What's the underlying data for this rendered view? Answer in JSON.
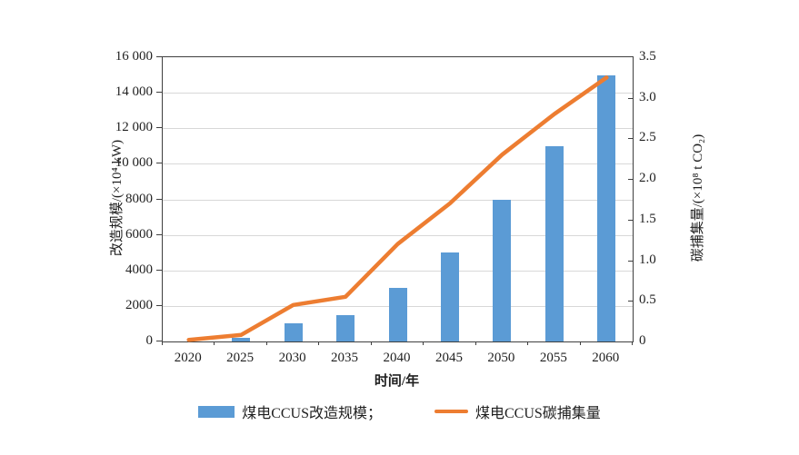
{
  "chart_data": {
    "type": "bar",
    "subtype": "combo-bar-line",
    "categories": [
      "2020",
      "2025",
      "2030",
      "2035",
      "2040",
      "2045",
      "2050",
      "2055",
      "2060"
    ],
    "series": [
      {
        "name": "煤电CCUS改造规模",
        "type": "bar",
        "axis": "left",
        "color": "#5B9BD5",
        "values": [
          0,
          200,
          1000,
          1500,
          3000,
          5000,
          8000,
          11000,
          15000
        ]
      },
      {
        "name": "煤电CCUS碳捕集量",
        "type": "line",
        "axis": "right",
        "color": "#ED7D31",
        "values": [
          0.02,
          0.08,
          0.45,
          0.55,
          1.2,
          1.7,
          2.3,
          2.8,
          3.25
        ]
      }
    ],
    "xlabel": "时间/年",
    "left_axis": {
      "label": "改造规模/(×10⁴ kW)",
      "lim": [
        0,
        16000
      ],
      "ticks": [
        {
          "label": "0",
          "value": 0
        },
        {
          "label": "2000",
          "value": 2000
        },
        {
          "label": "4000",
          "value": 4000
        },
        {
          "label": "6000",
          "value": 6000
        },
        {
          "label": "8000",
          "value": 8000
        },
        {
          "label": "10 000",
          "value": 10000
        },
        {
          "label": "12 000",
          "value": 12000
        },
        {
          "label": "14 000",
          "value": 14000
        },
        {
          "label": "16 000",
          "value": 16000
        }
      ]
    },
    "right_axis": {
      "label": "碳捕集量/(×10⁸ t CO₂)",
      "lim": [
        0,
        3.5
      ],
      "ticks": [
        {
          "label": "0",
          "value": 0
        },
        {
          "label": "0.5",
          "value": 0.5
        },
        {
          "label": "1.0",
          "value": 1.0
        },
        {
          "label": "1.5",
          "value": 1.5
        },
        {
          "label": "2.0",
          "value": 2.0
        },
        {
          "label": "2.5",
          "value": 2.5
        },
        {
          "label": "3.0",
          "value": 3.0
        },
        {
          "label": "3.5",
          "value": 3.5
        }
      ]
    },
    "legend": [
      {
        "label": "煤电CCUS改造规模；",
        "swatch": "bar"
      },
      {
        "label": "煤电CCUS碳捕集量",
        "swatch": "line"
      }
    ],
    "grid": "horizontal",
    "colors": {
      "bar": "#5B9BD5",
      "line": "#ED7D31",
      "gridline": "#d8d8d8",
      "frame": "#3f3f3f",
      "text": "#1f1f1f"
    }
  }
}
